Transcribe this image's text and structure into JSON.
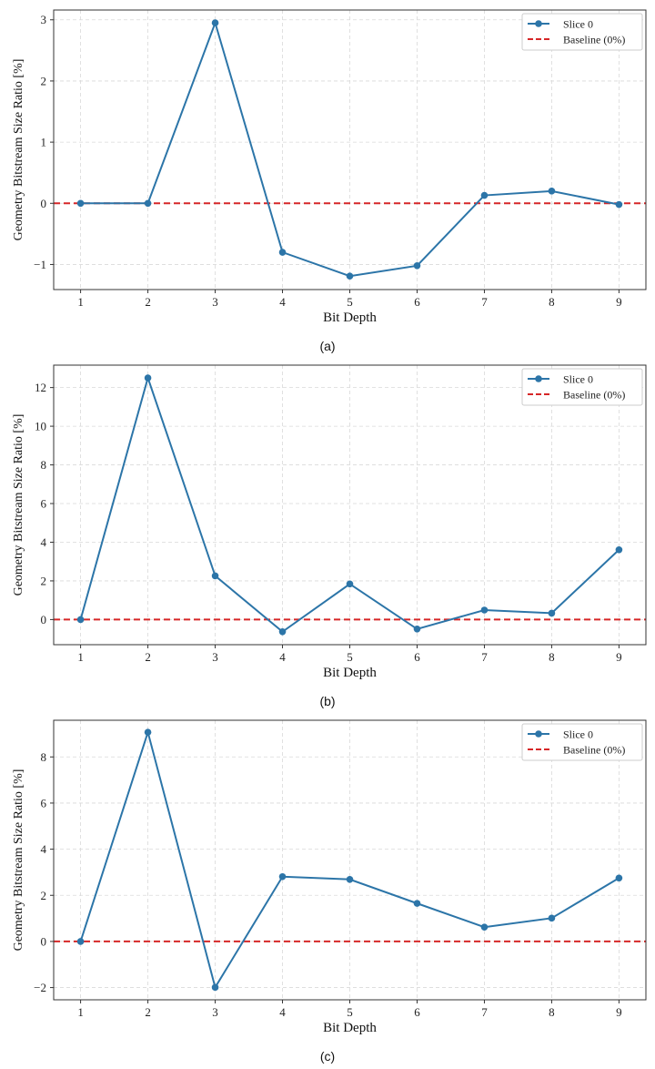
{
  "chart_data": [
    {
      "type": "line",
      "caption": "(a)",
      "xlabel": "Bit Depth",
      "ylabel": "Geometry Bitstream Size Ratio [%]",
      "x": [
        1,
        2,
        3,
        4,
        5,
        6,
        7,
        8,
        9
      ],
      "xticks": [
        "1",
        "2",
        "3",
        "4",
        "5",
        "6",
        "7",
        "8",
        "9"
      ],
      "yticks": [
        -1,
        0,
        1,
        2,
        3
      ],
      "ytick_labels": [
        "−1",
        "0",
        "1",
        "2",
        "3"
      ],
      "xlim": [
        0.6,
        9.4
      ],
      "ylim": [
        -1.41,
        3.16
      ],
      "grid": true,
      "legend": "top-right",
      "series": [
        {
          "name": "Slice 0",
          "color": "#2c75a8",
          "style": "solid-marker",
          "values": [
            0,
            0,
            2.95,
            -0.8,
            -1.19,
            -1.02,
            0.13,
            0.2,
            -0.02
          ]
        },
        {
          "name": "Baseline (0%)",
          "color": "#d62728",
          "style": "dashed",
          "y": 0
        }
      ]
    },
    {
      "type": "line",
      "caption": "(b)",
      "xlabel": "Bit Depth",
      "ylabel": "Geometry Bitstream Size Ratio [%]",
      "x": [
        1,
        2,
        3,
        4,
        5,
        6,
        7,
        8,
        9
      ],
      "xticks": [
        "1",
        "2",
        "3",
        "4",
        "5",
        "6",
        "7",
        "8",
        "9"
      ],
      "yticks": [
        0,
        2,
        4,
        6,
        8,
        10,
        12
      ],
      "ytick_labels": [
        "0",
        "2",
        "4",
        "6",
        "8",
        "10",
        "12"
      ],
      "xlim": [
        0.6,
        9.4
      ],
      "ylim": [
        -1.3,
        13.16
      ],
      "grid": true,
      "legend": "top-right",
      "series": [
        {
          "name": "Slice 0",
          "color": "#2c75a8",
          "style": "solid-marker",
          "values": [
            0,
            12.5,
            2.26,
            -0.63,
            1.84,
            -0.49,
            0.49,
            0.33,
            3.61
          ]
        },
        {
          "name": "Baseline (0%)",
          "color": "#d62728",
          "style": "dashed",
          "y": 0
        }
      ]
    },
    {
      "type": "line",
      "caption": "(c)",
      "xlabel": "Bit Depth",
      "ylabel": "Geometry Bitstream Size Ratio [%]",
      "x": [
        1,
        2,
        3,
        4,
        5,
        6,
        7,
        8,
        9
      ],
      "xticks": [
        "1",
        "2",
        "3",
        "4",
        "5",
        "6",
        "7",
        "8",
        "9"
      ],
      "yticks": [
        -2,
        0,
        2,
        4,
        6,
        8
      ],
      "ytick_labels": [
        "−2",
        "0",
        "2",
        "4",
        "6",
        "8"
      ],
      "xlim": [
        0.6,
        9.4
      ],
      "ylim": [
        -2.53,
        9.59
      ],
      "grid": true,
      "legend": "top-right",
      "series": [
        {
          "name": "Slice 0",
          "color": "#2c75a8",
          "style": "solid-marker",
          "values": [
            0,
            9.07,
            -1.99,
            2.81,
            2.69,
            1.65,
            0.62,
            1.01,
            2.75
          ]
        },
        {
          "name": "Baseline (0%)",
          "color": "#d62728",
          "style": "dashed",
          "y": 0
        }
      ]
    }
  ]
}
